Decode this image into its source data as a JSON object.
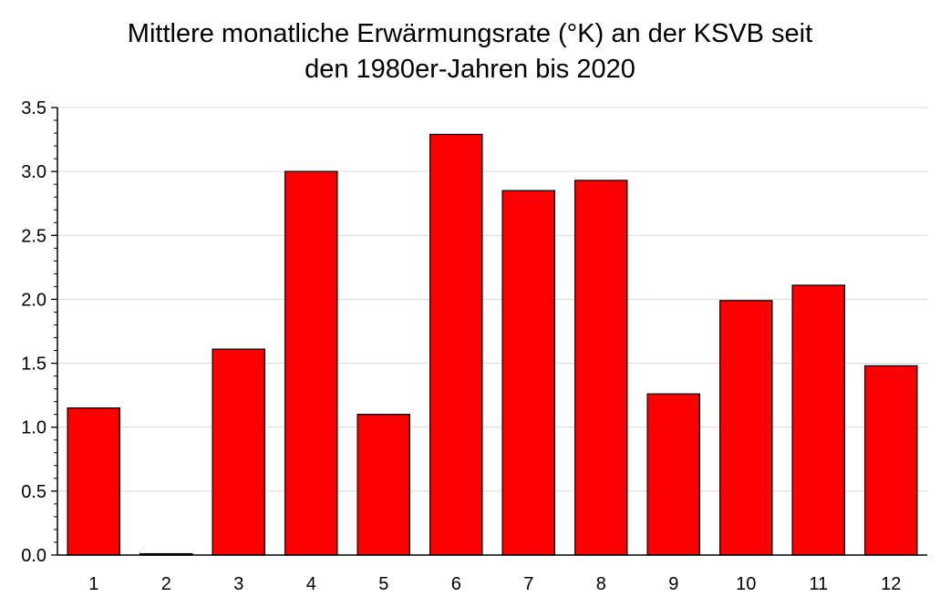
{
  "chart_data": {
    "type": "bar",
    "title_lines": [
      "Mittlere monatliche Erwärmungsrate (°K) an der KSVB seit",
      "den 1980er-Jahren bis 2020"
    ],
    "categories": [
      "1",
      "2",
      "3",
      "4",
      "5",
      "6",
      "7",
      "8",
      "9",
      "10",
      "11",
      "12"
    ],
    "values": [
      1.15,
      0.01,
      1.61,
      3.0,
      1.1,
      3.29,
      2.85,
      2.93,
      1.26,
      1.99,
      2.11,
      1.48
    ],
    "y_ticks": [
      "0.0",
      "0.5",
      "1.0",
      "1.5",
      "2.0",
      "2.5",
      "3.0",
      "3.5"
    ],
    "ylim": [
      0,
      3.5
    ],
    "xlabel": "",
    "ylabel": "",
    "grid": true,
    "legend": "none",
    "bar_color": "#ff0000",
    "bar_edge_color": "#000000",
    "grid_color": "#d9d9d9"
  }
}
